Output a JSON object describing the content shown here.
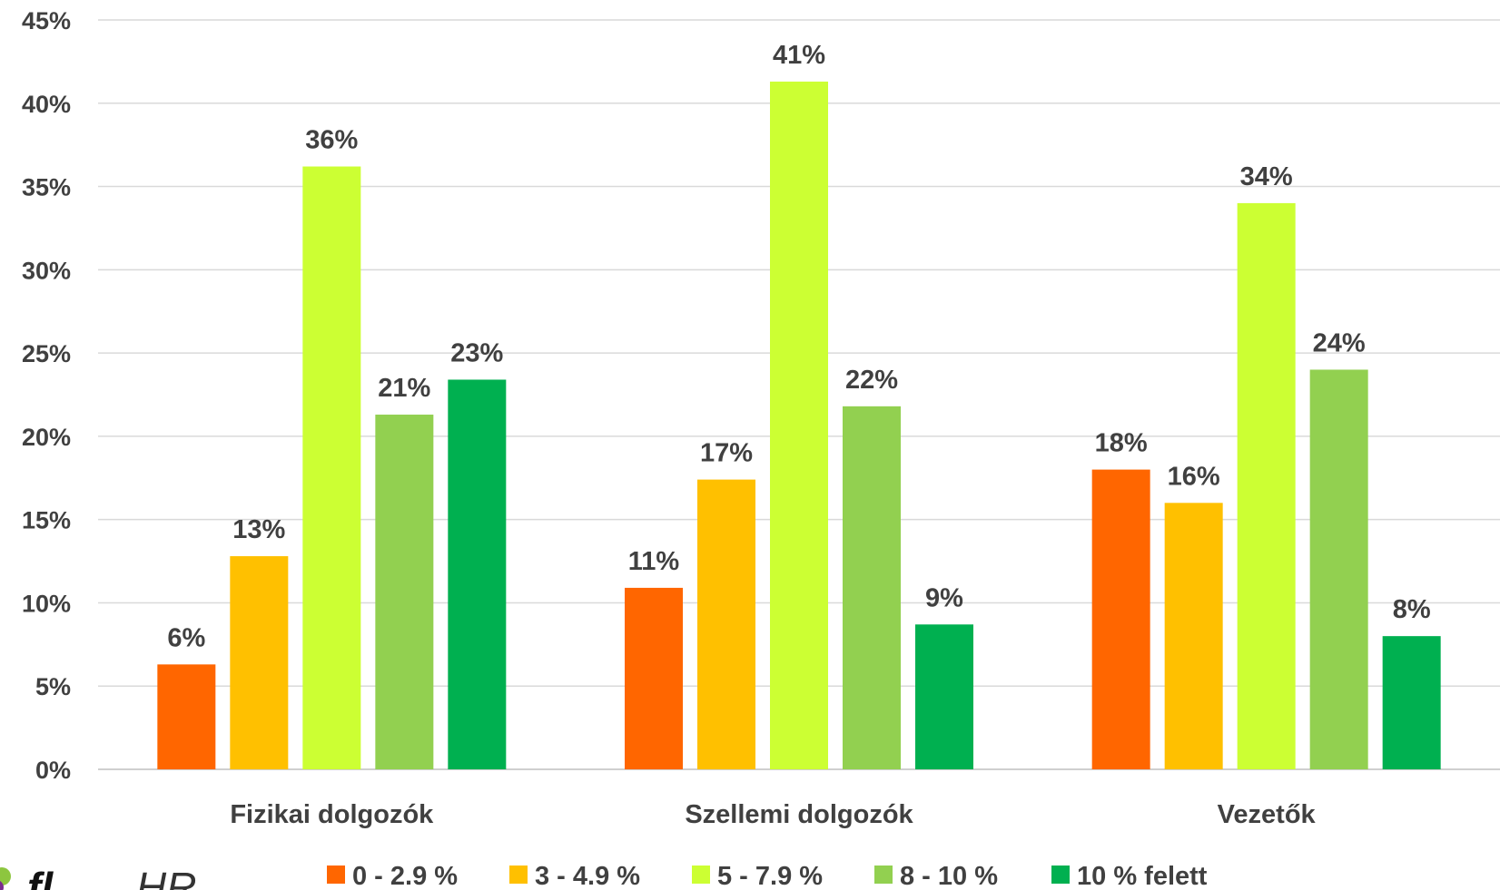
{
  "chart_data": {
    "type": "bar",
    "categories": [
      "Fizikai dolgozók",
      "Szellemi dolgozók",
      "Vezetők"
    ],
    "series": [
      {
        "name": "0 - 2.9 %",
        "color": "#FF6600",
        "values": [
          6,
          11,
          18
        ],
        "labels": [
          "6%",
          "11%",
          "18%"
        ],
        "plotted": [
          6.3,
          10.9,
          18.0
        ]
      },
      {
        "name": "3 - 4.9 %",
        "color": "#FFC000",
        "values": [
          13,
          17,
          16
        ],
        "labels": [
          "13%",
          "17%",
          "16%"
        ],
        "plotted": [
          12.8,
          17.4,
          16.0
        ]
      },
      {
        "name": "5 - 7.9 %",
        "color": "#CCFF33",
        "values": [
          36,
          41,
          34
        ],
        "labels": [
          "36%",
          "41%",
          "34%"
        ],
        "plotted": [
          36.2,
          41.3,
          34.0
        ]
      },
      {
        "name": "8 - 10 %",
        "color": "#92D050",
        "values": [
          21,
          22,
          24
        ],
        "labels": [
          "21%",
          "22%",
          "24%"
        ],
        "plotted": [
          21.3,
          21.8,
          24.0
        ]
      },
      {
        "name": "10 % felett",
        "color": "#00B050",
        "values": [
          23,
          9,
          8
        ],
        "labels": [
          "23%",
          "9%",
          "8%"
        ],
        "plotted": [
          23.4,
          8.7,
          8.0
        ]
      }
    ],
    "yticks": [
      "0%",
      "5%",
      "10%",
      "15%",
      "20%",
      "25%",
      "30%",
      "35%",
      "40%",
      "45%"
    ],
    "ylim": [
      0,
      45
    ],
    "grid": true,
    "legend_position": "bottom"
  },
  "logo": {
    "brand": "fl",
    "suffix": "HR"
  }
}
